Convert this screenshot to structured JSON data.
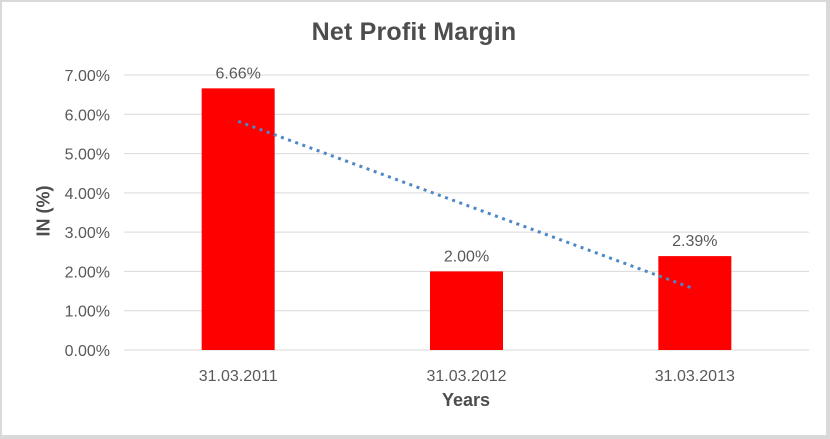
{
  "chart_data": {
    "type": "bar",
    "title": "Net Profit Margin",
    "xlabel": "Years",
    "ylabel": "IN (%)",
    "categories": [
      "31.03.2011",
      "31.03.2012",
      "31.03.2013"
    ],
    "values": [
      6.66,
      2.0,
      2.39
    ],
    "data_labels": [
      "6.66%",
      "2.00%",
      "2.39%"
    ],
    "y_ticks": [
      "0.00%",
      "1.00%",
      "2.00%",
      "3.00%",
      "4.00%",
      "5.00%",
      "6.00%",
      "7.00%"
    ],
    "ylim": [
      0,
      7
    ],
    "y_step": 1,
    "grid": true,
    "legend": "none",
    "bar_color": "#FF0000",
    "text_color": "#595959",
    "gridline_color": "#D9D9D9",
    "trendline": {
      "type": "linear",
      "style": "dotted",
      "color": "#4E87C5",
      "start_value": 5.82,
      "end_value": 1.55,
      "spans_categories": [
        "31.03.2011",
        "31.03.2013"
      ]
    }
  }
}
